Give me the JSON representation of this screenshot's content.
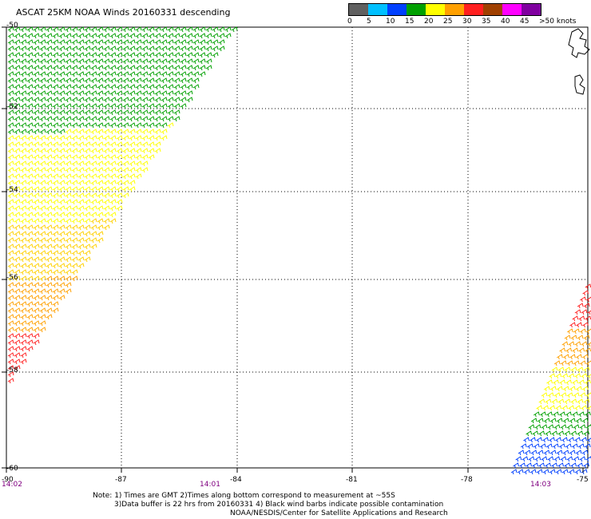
{
  "title": "ASCAT 25KM NOAA Winds 20160331 descending",
  "legend": {
    "colors": [
      "#606060",
      "#00c0ff",
      "#0040ff",
      "#00a000",
      "#ffff00",
      "#ffa000",
      "#ff2020",
      "#a04000",
      "#ff00ff",
      "#8000a0"
    ],
    "labels": [
      "0",
      "5",
      "10",
      "15",
      "20",
      "25",
      "30",
      "35",
      "40",
      "45",
      ">50 knots"
    ]
  },
  "axes": {
    "lat_labels": [
      "-50",
      "-52",
      "-54",
      "-56",
      "-58",
      "-60"
    ],
    "lon_labels": [
      "-90",
      "-87",
      "-84",
      "-81",
      "-78",
      "-75"
    ]
  },
  "times": {
    "left": "14:02",
    "middle": "14:01",
    "right": "14:03"
  },
  "notes": {
    "line1": "Note: 1) Times are GMT 2)Times along bottom correspond to measurement at ~55S",
    "line2": "3)Data buffer is 22 hrs from 20160331 4) Black wind barbs indicate possible contamination",
    "line3": "NOAA/NESDIS/Center for Satellite Applications and Research"
  }
}
